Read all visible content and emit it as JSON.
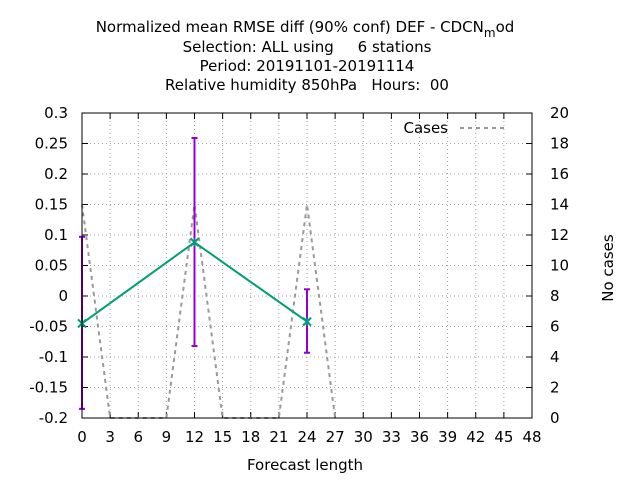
{
  "chart_data": {
    "type": "line",
    "title_lines": [
      "Normalized mean RMSE diff (90% conf) DEF - CDCN",
      "Selection: ALL using     6 stations",
      "Period: 20191101-20191114",
      "Relative humidity 850hPa   Hours:  00"
    ],
    "title_sub": "m",
    "title_tail": "od",
    "xlabel": "Forecast length",
    "ylabel": "",
    "y2label": "No cases",
    "xlim": [
      0,
      48
    ],
    "ylim": [
      -0.2,
      0.3
    ],
    "y2lim": [
      0,
      20
    ],
    "xticks": [
      "0",
      "3",
      "6",
      "9",
      "12",
      "15",
      "18",
      "21",
      "24",
      "27",
      "30",
      "33",
      "36",
      "39",
      "42",
      "45",
      "48"
    ],
    "yticks": [
      "0.3",
      "0.25",
      "0.2",
      "0.15",
      "0.1",
      "0.05",
      "0",
      "-0.05",
      "-0.1",
      "-0.15",
      "-0.2"
    ],
    "y2ticks": [
      "20",
      "18",
      "16",
      "14",
      "12",
      "10",
      "8",
      "6",
      "4",
      "2",
      "0"
    ],
    "grid": true,
    "legend_position": "top-right",
    "colors": {
      "rmse": "#009e73",
      "errorbar": "#9400d3",
      "cases": "#999999"
    },
    "series": [
      {
        "x": [
          0,
          12,
          24
        ],
        "values": [
          -0.045,
          0.088,
          -0.042
        ],
        "ci_low": [
          -0.185,
          -0.082,
          -0.093
        ],
        "ci_high": [
          0.097,
          0.259,
          0.011
        ]
      },
      {
        "name": "Cases",
        "axis": "right",
        "x": [
          0,
          3,
          9,
          12,
          15,
          21,
          24,
          27
        ],
        "values": [
          14,
          0,
          0,
          14,
          0,
          0,
          14,
          0
        ]
      }
    ]
  }
}
